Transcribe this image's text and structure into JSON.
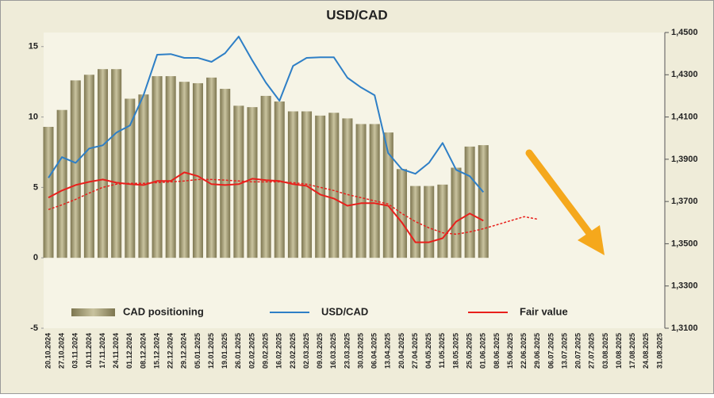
{
  "chart_data": {
    "type": "bar-line",
    "title": "USD/CAD",
    "categories": [
      "20.10.2024",
      "27.10.2024",
      "03.11.2024",
      "10.11.2024",
      "17.11.2024",
      "24.11.2024",
      "01.12.2024",
      "08.12.2024",
      "15.12.2024",
      "22.12.2024",
      "29.12.2024",
      "05.01.2025",
      "12.01.2025",
      "19.01.2025",
      "26.01.2025",
      "02.02.2025",
      "09.02.2025",
      "16.02.2025",
      "23.02.2025",
      "02.03.2025",
      "09.03.2025",
      "16.03.2025",
      "23.03.2025",
      "30.03.2025",
      "06.04.2025",
      "13.04.2025",
      "20.04.2025",
      "27.04.2025",
      "04.05.2025",
      "11.05.2025",
      "18.05.2025",
      "25.05.2025",
      "01.06.2025",
      "08.06.2025",
      "15.06.2025",
      "22.06.2025",
      "29.06.2025",
      "06.07.2025",
      "13.07.2025",
      "20.07.2025",
      "27.07.2025",
      "03.08.2025",
      "10.08.2025",
      "17.08.2025",
      "24.08.2025",
      "31.08.2025"
    ],
    "series": [
      {
        "name": "CAD positioning",
        "type": "bar",
        "axis": "y",
        "color": "#c9c39f",
        "values": [
          9.3,
          10.5,
          12.6,
          13.0,
          13.4,
          13.4,
          11.3,
          11.6,
          12.9,
          12.9,
          12.5,
          12.4,
          12.8,
          12.0,
          10.8,
          10.7,
          11.5,
          11.1,
          10.4,
          10.4,
          10.1,
          10.3,
          9.9,
          9.5,
          9.5,
          8.9,
          6.3,
          5.1,
          5.1,
          5.2,
          6.4,
          7.9,
          8.0,
          null,
          null,
          null,
          null,
          null,
          null,
          null,
          null,
          null,
          null,
          null,
          null,
          null
        ]
      },
      {
        "name": "USD/CAD",
        "type": "line",
        "axis": "y2",
        "color": "#2e7fc6",
        "values": [
          1.3812,
          1.391,
          1.3883,
          1.3951,
          1.3966,
          1.4026,
          1.406,
          1.4203,
          1.4395,
          1.4398,
          1.438,
          1.438,
          1.4361,
          1.4402,
          1.4481,
          1.4368,
          1.4263,
          1.4177,
          1.4342,
          1.438,
          1.4383,
          1.4383,
          1.4286,
          1.424,
          1.4203,
          1.3929,
          1.3853,
          1.3831,
          1.3883,
          1.3977,
          1.385,
          1.382,
          1.3744,
          null,
          null,
          null,
          null,
          null,
          null,
          null,
          null,
          null,
          null,
          null,
          null,
          null
        ]
      },
      {
        "name": "Fair value",
        "type": "line",
        "axis": "y2",
        "color": "#e8201c",
        "values": [
          1.3718,
          1.3752,
          1.3778,
          1.3793,
          1.3804,
          1.3789,
          1.3782,
          1.3778,
          1.3797,
          1.3797,
          1.3838,
          1.382,
          1.3782,
          1.3778,
          1.3782,
          1.3808,
          1.3801,
          1.3797,
          1.3782,
          1.3774,
          1.3733,
          1.3714,
          1.368,
          1.3692,
          1.3692,
          1.368,
          1.3601,
          1.3507,
          1.3507,
          1.3526,
          1.3605,
          1.3643,
          1.3609,
          null,
          null,
          null,
          null,
          null,
          null,
          null,
          null,
          null,
          null,
          null,
          null,
          null
        ]
      },
      {
        "type": "line",
        "axis": "y2",
        "color": "#e8201c",
        "dash": true,
        "values": [
          1.3662,
          1.3684,
          1.371,
          1.374,
          1.3767,
          1.3782,
          1.3786,
          1.3786,
          1.3789,
          1.3793,
          1.3797,
          1.3804,
          1.3804,
          1.3801,
          1.3797,
          1.3793,
          1.3793,
          1.3793,
          1.3789,
          1.3782,
          1.3767,
          1.3752,
          1.3733,
          1.3718,
          1.3703,
          1.3688,
          1.3643,
          1.3605,
          1.3575,
          1.3552,
          1.3545,
          1.3556,
          1.3571,
          1.359,
          1.3609,
          1.3628,
          1.3616,
          null,
          null,
          null,
          null,
          null,
          null,
          null,
          null,
          null
        ]
      }
    ],
    "ylim": [
      -5,
      16
    ],
    "yticks": [
      -5,
      0,
      5,
      10,
      15
    ],
    "y2lim": [
      1.31,
      1.45
    ],
    "y2ticks": [
      {
        "value": 1.31,
        "label": "1,3100"
      },
      {
        "value": 1.33,
        "label": "1,3300"
      },
      {
        "value": 1.35,
        "label": "1,3500"
      },
      {
        "value": 1.37,
        "label": "1,3700"
      },
      {
        "value": 1.39,
        "label": "1,3900"
      },
      {
        "value": 1.41,
        "label": "1,4100"
      },
      {
        "value": 1.43,
        "label": "1,4300"
      },
      {
        "value": 1.45,
        "label": "1,4500"
      }
    ],
    "grid": false,
    "legend": "bottom"
  }
}
